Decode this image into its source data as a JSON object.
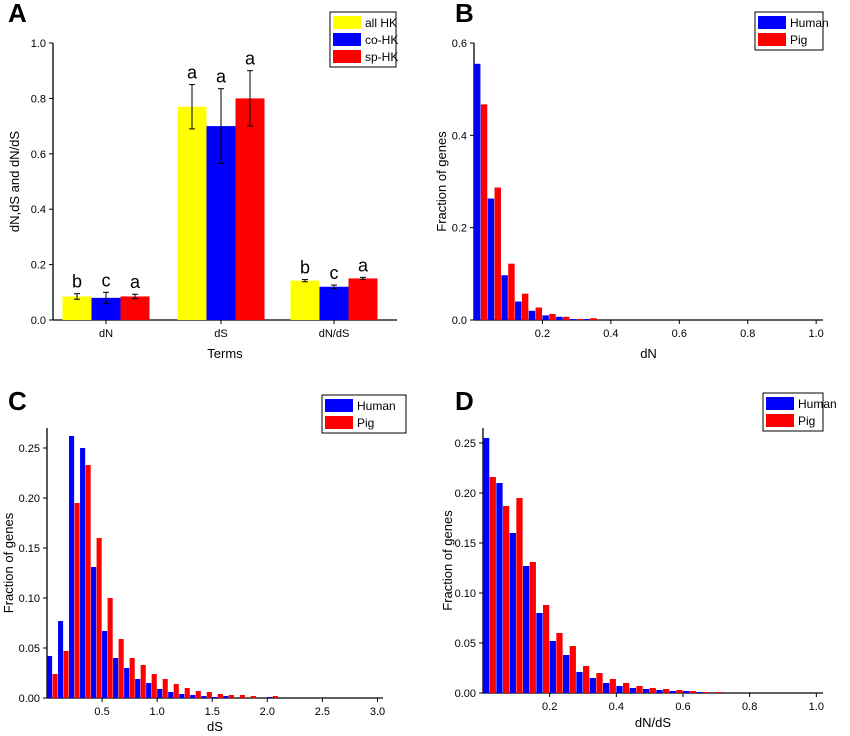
{
  "colors": {
    "yellow": "#ffff00",
    "blue": "#0000ff",
    "red": "#ff0000",
    "axis": "#000000"
  },
  "panels": {
    "A": {
      "letter": "A",
      "chart_data": {
        "type": "bar",
        "xlabel": "Terms",
        "ylabel": "dN,dS and dN/dS",
        "ylim": [
          0,
          1.0
        ],
        "yticks": [
          "0.0",
          "0.2",
          "0.4",
          "0.6",
          "0.8",
          "1.0"
        ],
        "categories": [
          "dN",
          "dS",
          "dN/dS"
        ],
        "legend_position": "top-right",
        "series": [
          {
            "name": "all HK",
            "color": "#ffff00",
            "values": [
              0.085,
              0.77,
              0.142
            ],
            "errors": [
              0.01,
              0.08,
              0.004
            ],
            "labels": [
              "b",
              "a",
              "b"
            ]
          },
          {
            "name": "co-HK",
            "color": "#0000ff",
            "values": [
              0.08,
              0.7,
              0.12
            ],
            "errors": [
              0.02,
              0.135,
              0.006
            ],
            "labels": [
              "c",
              "a",
              "c"
            ]
          },
          {
            "name": "sp-HK",
            "color": "#ff0000",
            "values": [
              0.085,
              0.8,
              0.15
            ],
            "errors": [
              0.008,
              0.1,
              0.004
            ],
            "labels": [
              "a",
              "a",
              "a"
            ]
          }
        ]
      }
    },
    "B": {
      "letter": "B",
      "chart_data": {
        "type": "bar",
        "xlabel": "dN",
        "ylabel": "Fraction of genes",
        "xlim": [
          0.0,
          1.02
        ],
        "ylim": [
          0,
          0.6
        ],
        "xticks": [
          "0.2",
          "0.4",
          "0.6",
          "0.8",
          "1.0"
        ],
        "yticks": [
          "0.0",
          "0.2",
          "0.4",
          "0.6"
        ],
        "bin_start": 0.0,
        "bin_width": 0.04,
        "legend_position": "top-right",
        "series": [
          {
            "name": "Human",
            "color": "#0000ff",
            "values": [
              0.555,
              0.263,
              0.097,
              0.04,
              0.02,
              0.01,
              0.007,
              0.002,
              0.002,
              0,
              0,
              0,
              0,
              0,
              0,
              0,
              0,
              0,
              0,
              0,
              0,
              0,
              0,
              0,
              0
            ]
          },
          {
            "name": "Pig",
            "color": "#ff0000",
            "values": [
              0.467,
              0.287,
              0.122,
              0.057,
              0.027,
              0.013,
              0.007,
              0.002,
              0.004,
              0,
              0,
              0,
              0,
              0,
              0,
              0,
              0,
              0,
              0,
              0,
              0,
              0,
              0,
              0,
              0
            ]
          }
        ]
      }
    },
    "C": {
      "letter": "C",
      "chart_data": {
        "type": "bar",
        "xlabel": "dS",
        "ylabel": "Fraction of genes",
        "xlim": [
          0.0,
          3.05
        ],
        "ylim": [
          0,
          0.27
        ],
        "xticks": [
          "0.5",
          "1.0",
          "1.5",
          "2.0",
          "2.5",
          "3.0"
        ],
        "yticks": [
          "0.00",
          "0.05",
          "0.10",
          "0.15",
          "0.20",
          "0.25"
        ],
        "bin_start": 0.0,
        "bin_width": 0.1,
        "legend_position": "top-right",
        "series": [
          {
            "name": "Human",
            "color": "#0000ff",
            "values": [
              0.042,
              0.077,
              0.262,
              0.25,
              0.131,
              0.067,
              0.04,
              0.03,
              0.019,
              0.015,
              0.009,
              0.006,
              0.004,
              0.003,
              0.002,
              0.001,
              0.002,
              0,
              0,
              0,
              0.001,
              0,
              0,
              0,
              0,
              0,
              0,
              0,
              0,
              0,
              0
            ]
          },
          {
            "name": "Pig",
            "color": "#ff0000",
            "values": [
              0.024,
              0.047,
              0.195,
              0.233,
              0.16,
              0.1,
              0.059,
              0.04,
              0.033,
              0.024,
              0.019,
              0.014,
              0.01,
              0.007,
              0.006,
              0.004,
              0.003,
              0.003,
              0.002,
              0,
              0.002,
              0,
              0,
              0,
              0,
              0,
              0,
              0,
              0,
              0,
              0
            ]
          }
        ]
      }
    },
    "D": {
      "letter": "D",
      "chart_data": {
        "type": "bar",
        "xlabel": "dN/dS",
        "ylabel": "Fraction of genes",
        "xlim": [
          0.0,
          1.02
        ],
        "ylim": [
          0,
          0.265
        ],
        "xticks": [
          "0.2",
          "0.4",
          "0.6",
          "0.8",
          "1.0"
        ],
        "yticks": [
          "0.00",
          "0.05",
          "0.10",
          "0.15",
          "0.20",
          "0.25"
        ],
        "bin_start": 0.0,
        "bin_width": 0.04,
        "legend_position": "top-right",
        "series": [
          {
            "name": "Human",
            "color": "#0000ff",
            "values": [
              0.255,
              0.21,
              0.16,
              0.127,
              0.08,
              0.052,
              0.038,
              0.021,
              0.015,
              0.01,
              0.007,
              0.005,
              0.004,
              0.003,
              0.002,
              0.002,
              0.001,
              0,
              0,
              0,
              0,
              0,
              0,
              0,
              0
            ]
          },
          {
            "name": "Pig",
            "color": "#ff0000",
            "values": [
              0.216,
              0.187,
              0.195,
              0.131,
              0.088,
              0.06,
              0.047,
              0.027,
              0.02,
              0.014,
              0.01,
              0.007,
              0.005,
              0.004,
              0.003,
              0.002,
              0.001,
              0.001,
              0,
              0,
              0,
              0,
              0,
              0,
              0
            ]
          }
        ]
      }
    }
  }
}
